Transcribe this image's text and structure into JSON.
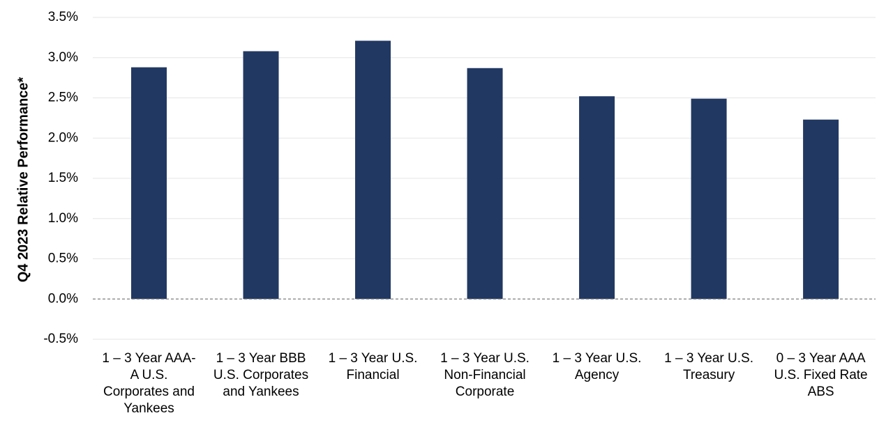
{
  "chart_data": {
    "type": "bar",
    "title": "",
    "xlabel": "",
    "ylabel": "Q4 2023 Relative Performance*",
    "categories": [
      [
        "1 – 3 Year AAA-",
        "A U.S.",
        "Corporates and",
        "Yankees"
      ],
      [
        "1 – 3 Year BBB",
        "U.S. Corporates",
        "and Yankees"
      ],
      [
        "1 – 3 Year U.S.",
        "Financial"
      ],
      [
        "1 – 3 Year U.S.",
        "Non-Financial",
        "Corporate"
      ],
      [
        "1 – 3 Year U.S.",
        "Agency"
      ],
      [
        "1 – 3 Year U.S.",
        "Treasury"
      ],
      [
        "0 – 3 Year AAA",
        "U.S. Fixed Rate",
        "ABS"
      ]
    ],
    "values": [
      2.88,
      3.08,
      3.21,
      2.87,
      2.52,
      2.49,
      2.23
    ],
    "unit": "%",
    "ylim": [
      -0.5,
      3.5
    ],
    "yticks": [
      "-0.5%",
      "0.0%",
      "0.5%",
      "1.0%",
      "1.5%",
      "2.0%",
      "2.5%",
      "3.0%",
      "3.5%"
    ],
    "ytick_values": [
      -0.5,
      0,
      0.5,
      1.0,
      1.5,
      2.0,
      2.5,
      3.0,
      3.5
    ],
    "grid": true,
    "legend": "none",
    "colors": {
      "bar": "#213863",
      "grid": "#e6e6e6",
      "zero_line": "#7f7f7f"
    }
  }
}
